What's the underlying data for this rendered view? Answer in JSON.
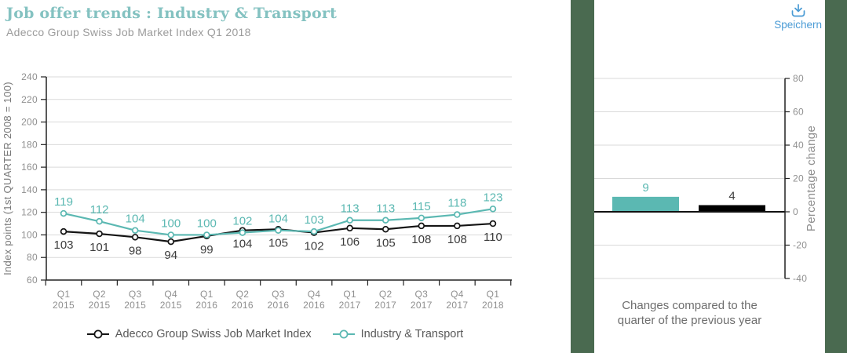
{
  "header": {
    "title": "Job offer trends : Industry & Transport",
    "subtitle": "Adecco Group Swiss Job Market Index Q1 2018"
  },
  "toolbar": {
    "save_label": "Speichern"
  },
  "colors": {
    "title_teal": "#84c2c1",
    "teal": "#5bb8b2",
    "black": "#141414",
    "panel_green": "#4a6a50",
    "save_blue": "#4a9bd5",
    "grid": "#d9d9d9",
    "tick_text": "#8f8f8f",
    "label_dark": "#3c3c3c"
  },
  "chart_data": [
    {
      "type": "line",
      "title": "Job offer trends : Industry & Transport",
      "ylabel": "Index points (1st QUARTER 2008 = 100)",
      "ylim": [
        60,
        240
      ],
      "yticks": [
        240,
        220,
        200,
        180,
        160,
        140,
        120,
        100,
        80,
        60
      ],
      "categories": [
        "Q1 2015",
        "Q2 2015",
        "Q3 2015",
        "Q4 2015",
        "Q1 2016",
        "Q2 2016",
        "Q3 2016",
        "Q4 2016",
        "Q1 2017",
        "Q2 2017",
        "Q3 2017",
        "Q4 2017",
        "Q1 2018"
      ],
      "grid": true,
      "legend_position": "bottom",
      "series": [
        {
          "name": "Adecco Group Swiss Job Market Index",
          "color": "#141414",
          "label_position": "below",
          "values": [
            103,
            101,
            98,
            94,
            99,
            104,
            105,
            102,
            106,
            105,
            108,
            108,
            110
          ]
        },
        {
          "name": "Industry & Transport",
          "color": "#5bb8b2",
          "label_position": "above",
          "values": [
            119,
            112,
            104,
            100,
            100,
            102,
            104,
            103,
            113,
            113,
            115,
            118,
            123
          ]
        }
      ]
    },
    {
      "type": "bar",
      "ylabel": "Percentage change",
      "ylim": [
        -40,
        80
      ],
      "yticks": [
        80,
        60,
        40,
        20,
        0,
        -20,
        -40
      ],
      "series": [
        {
          "name": "Industry & Transport",
          "color": "#5bb8b2",
          "value": 9
        },
        {
          "name": "Adecco Group Swiss Job Market Index",
          "color": "#000000",
          "value": 4
        }
      ],
      "caption_lines": [
        "Changes compared to the",
        "quarter of the previous year"
      ]
    }
  ]
}
